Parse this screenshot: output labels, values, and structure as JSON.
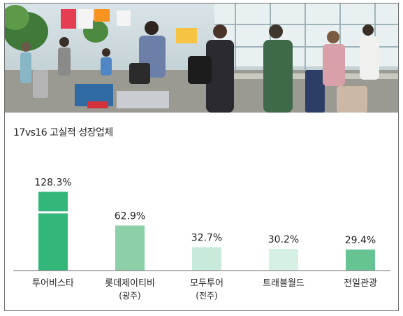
{
  "chart_data": {
    "type": "bar",
    "title": "17vs16 고실적 성장업체",
    "categories": [
      {
        "name": "투어비스타",
        "sub": ""
      },
      {
        "name": "롯데제이티비",
        "sub": "(광주)"
      },
      {
        "name": "모두투어",
        "sub": "(전주)"
      },
      {
        "name": "트래블월드",
        "sub": ""
      },
      {
        "name": "전일관광",
        "sub": ""
      }
    ],
    "values": [
      128.3,
      62.9,
      32.7,
      30.2,
      29.4
    ],
    "value_labels": [
      "128.3%",
      "62.9%",
      "32.7%",
      "30.2%",
      "29.4%"
    ],
    "colors": [
      "#33b679",
      "#8ccfa8",
      "#c7eadb",
      "#d6f0e3",
      "#66c493"
    ],
    "axis_break_on": "투어비스타",
    "grid": false,
    "legend": "none"
  }
}
